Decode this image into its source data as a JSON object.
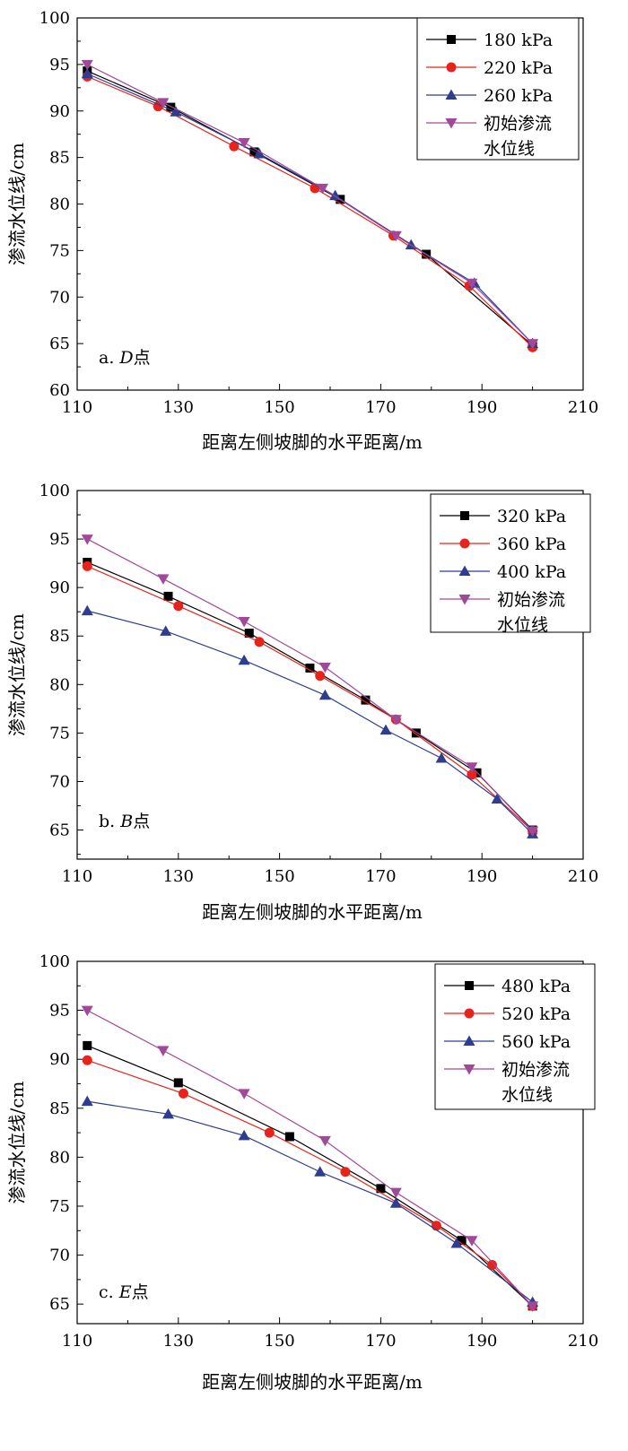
{
  "colors": {
    "black": "#000000",
    "red": "#e8231c",
    "blue": "#2f3d8f",
    "purple": "#a0489a"
  },
  "chart_data": [
    {
      "type": "line",
      "panel_label": "a.",
      "panel_point": "D",
      "panel_suffix": "点",
      "xlabel": "距离左侧坡脚的水平距离/m",
      "ylabel": "渗流水位线/cm",
      "xlim": [
        110,
        210
      ],
      "ylim": [
        60,
        100
      ],
      "xticks": [
        110,
        130,
        150,
        170,
        190,
        210
      ],
      "yticks": [
        60,
        65,
        70,
        75,
        80,
        85,
        90,
        95,
        100
      ],
      "legend_position": "top-right",
      "series": [
        {
          "name": "180 kPa",
          "marker": "square",
          "color": "#000000",
          "x": [
            112,
            128.5,
            145,
            162,
            179,
            200
          ],
          "y": [
            94.3,
            90.4,
            85.6,
            80.5,
            74.6,
            64.8
          ]
        },
        {
          "name": "220 kPa",
          "marker": "circle",
          "color": "#e8231c",
          "x": [
            112,
            126,
            141,
            157,
            172.5,
            187.5,
            200
          ],
          "y": [
            93.7,
            90.5,
            86.2,
            81.7,
            76.6,
            71.2,
            64.6
          ]
        },
        {
          "name": "260 kPa",
          "marker": "triangle-up",
          "color": "#2f3d8f",
          "x": [
            112,
            129.5,
            146,
            161,
            176,
            188.5,
            200
          ],
          "y": [
            94.0,
            89.9,
            85.4,
            80.9,
            75.6,
            71.5,
            65.0
          ]
        },
        {
          "name": "初始渗流 水位线",
          "legend_lines": [
            "初始渗流",
            "水位线"
          ],
          "marker": "triangle-down",
          "color": "#a0489a",
          "x": [
            112,
            127,
            143,
            158.5,
            173,
            188,
            200
          ],
          "y": [
            95.0,
            90.9,
            86.6,
            81.7,
            76.6,
            71.5,
            65.0
          ]
        }
      ]
    },
    {
      "type": "line",
      "panel_label": "b.",
      "panel_point": "B",
      "panel_suffix": "点",
      "xlabel": "距离左侧坡脚的水平距离/m",
      "ylabel": "渗流水位线/cm",
      "xlim": [
        110,
        210
      ],
      "ylim": [
        62,
        100
      ],
      "xticks": [
        110,
        130,
        150,
        170,
        190,
        210
      ],
      "yticks": [
        65,
        70,
        75,
        80,
        85,
        90,
        95,
        100
      ],
      "legend_position": "top-right",
      "series": [
        {
          "name": "320 kPa",
          "marker": "square",
          "color": "#000000",
          "x": [
            112,
            128,
            144,
            156,
            167,
            177,
            189,
            200
          ],
          "y": [
            92.6,
            89.1,
            85.3,
            81.7,
            78.4,
            75.0,
            70.9,
            65.0
          ]
        },
        {
          "name": "360 kPa",
          "marker": "circle",
          "color": "#e8231c",
          "x": [
            112,
            130,
            146,
            158,
            173,
            188,
            200
          ],
          "y": [
            92.2,
            88.1,
            84.4,
            80.9,
            76.4,
            70.7,
            64.9
          ]
        },
        {
          "name": "400 kPa",
          "marker": "triangle-up",
          "color": "#2f3d8f",
          "x": [
            112,
            127.5,
            143,
            159,
            171,
            182,
            193,
            200
          ],
          "y": [
            87.6,
            85.5,
            82.5,
            78.9,
            75.3,
            72.4,
            68.2,
            64.6
          ]
        },
        {
          "name": "初始渗流 水位线",
          "legend_lines": [
            "初始渗流",
            "水位线"
          ],
          "marker": "triangle-down",
          "color": "#a0489a",
          "x": [
            112,
            127,
            143,
            159,
            173,
            188,
            200
          ],
          "y": [
            95.0,
            90.9,
            86.5,
            81.8,
            76.4,
            71.5,
            64.9
          ]
        }
      ]
    },
    {
      "type": "line",
      "panel_label": "c.",
      "panel_point": "E",
      "panel_suffix": "点",
      "xlabel": "距离左侧坡脚的水平距离/m",
      "ylabel": "渗流水位线/cm",
      "xlim": [
        110,
        210
      ],
      "ylim": [
        63,
        100
      ],
      "xticks": [
        110,
        130,
        150,
        170,
        190,
        210
      ],
      "yticks": [
        65,
        70,
        75,
        80,
        85,
        90,
        95,
        100
      ],
      "legend_position": "top-right",
      "series": [
        {
          "name": "480 kPa",
          "marker": "square",
          "color": "#000000",
          "x": [
            112,
            130,
            152,
            170,
            186,
            200
          ],
          "y": [
            91.4,
            87.6,
            82.1,
            76.8,
            71.5,
            64.8
          ]
        },
        {
          "name": "520 kPa",
          "marker": "circle",
          "color": "#e8231c",
          "x": [
            112,
            131,
            148,
            163,
            181,
            192,
            200
          ],
          "y": [
            89.9,
            86.5,
            82.5,
            78.5,
            73.0,
            69.0,
            64.8
          ]
        },
        {
          "name": "560 kPa",
          "marker": "triangle-up",
          "color": "#2f3d8f",
          "x": [
            112,
            128,
            143,
            158,
            173,
            185,
            200
          ],
          "y": [
            85.7,
            84.4,
            82.2,
            78.5,
            75.3,
            71.2,
            65.2
          ]
        },
        {
          "name": "初始渗流 水位线",
          "legend_lines": [
            "初始渗流",
            "水位线"
          ],
          "marker": "triangle-down",
          "color": "#a0489a",
          "x": [
            112,
            127,
            143,
            159,
            173,
            188,
            200
          ],
          "y": [
            95.0,
            90.9,
            86.5,
            81.7,
            76.4,
            71.5,
            64.8
          ]
        }
      ]
    }
  ]
}
